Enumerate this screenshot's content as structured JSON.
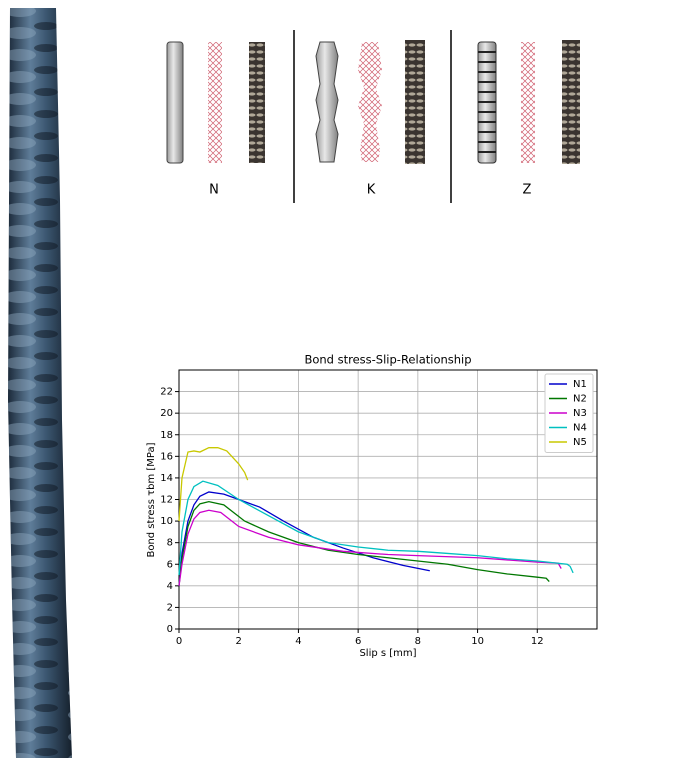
{
  "diagram": {
    "labels": [
      "N",
      "K",
      "Z"
    ]
  },
  "chart_data": {
    "type": "line",
    "title": "Bond stress-Slip-Relationship",
    "xlabel": "Slip s [mm]",
    "ylabel": "Bond stress τbm [MPa]",
    "xlim": [
      0,
      14
    ],
    "ylim": [
      0,
      24
    ],
    "xticks": [
      0,
      2,
      4,
      6,
      8,
      10,
      12
    ],
    "yticks": [
      0,
      2,
      4,
      6,
      8,
      10,
      12,
      14,
      16,
      18,
      20,
      22
    ],
    "grid": true,
    "legend": "upper right",
    "series": [
      {
        "name": "N1",
        "color": "#0000cc",
        "x": [
          0,
          0.1,
          0.3,
          0.5,
          0.7,
          1,
          1.5,
          2,
          2.7,
          3.5,
          4.5,
          5.5,
          6.5,
          7.5,
          8.4
        ],
        "values": [
          4,
          7,
          10,
          11.5,
          12.3,
          12.7,
          12.5,
          12,
          11.3,
          10,
          8.5,
          7.5,
          6.6,
          5.9,
          5.4
        ]
      },
      {
        "name": "N2",
        "color": "#007700",
        "x": [
          0,
          0.1,
          0.3,
          0.5,
          0.7,
          1,
          1.5,
          2.2,
          3,
          4,
          5,
          6,
          7,
          8,
          9,
          10,
          11,
          12,
          12.3,
          12.4
        ],
        "values": [
          4,
          6.5,
          9.5,
          11,
          11.6,
          11.8,
          11.5,
          10,
          9,
          8,
          7.3,
          6.9,
          6.6,
          6.3,
          6,
          5.5,
          5.1,
          4.8,
          4.7,
          4.4
        ]
      },
      {
        "name": "N3",
        "color": "#cc00cc",
        "x": [
          0,
          0.1,
          0.3,
          0.5,
          0.7,
          1,
          1.4,
          2,
          3,
          4,
          5.5,
          7,
          8,
          10,
          11,
          12,
          12.7,
          12.8
        ],
        "values": [
          4,
          6,
          8.8,
          10.2,
          10.8,
          11,
          10.8,
          9.5,
          8.5,
          7.8,
          7.2,
          6.9,
          6.8,
          6.6,
          6.4,
          6.2,
          6.1,
          5.6
        ]
      },
      {
        "name": "N4",
        "color": "#00c0c0",
        "x": [
          0,
          0.1,
          0.3,
          0.5,
          0.8,
          1.3,
          2,
          3,
          4,
          5,
          6,
          7,
          8,
          9,
          10,
          11,
          12,
          13,
          13.1,
          13.2
        ],
        "values": [
          5,
          9,
          12,
          13.2,
          13.7,
          13.3,
          12,
          10.5,
          9,
          8,
          7.6,
          7.3,
          7.2,
          7,
          6.8,
          6.5,
          6.3,
          6,
          5.8,
          5.2
        ]
      },
      {
        "name": "N5",
        "color": "#c8c800",
        "x": [
          0,
          0.1,
          0.3,
          0.5,
          0.7,
          1,
          1.3,
          1.6,
          2,
          2.2,
          2.3
        ],
        "values": [
          10,
          14,
          16.4,
          16.5,
          16.4,
          16.8,
          16.8,
          16.5,
          15.3,
          14.5,
          13.8
        ]
      }
    ]
  }
}
